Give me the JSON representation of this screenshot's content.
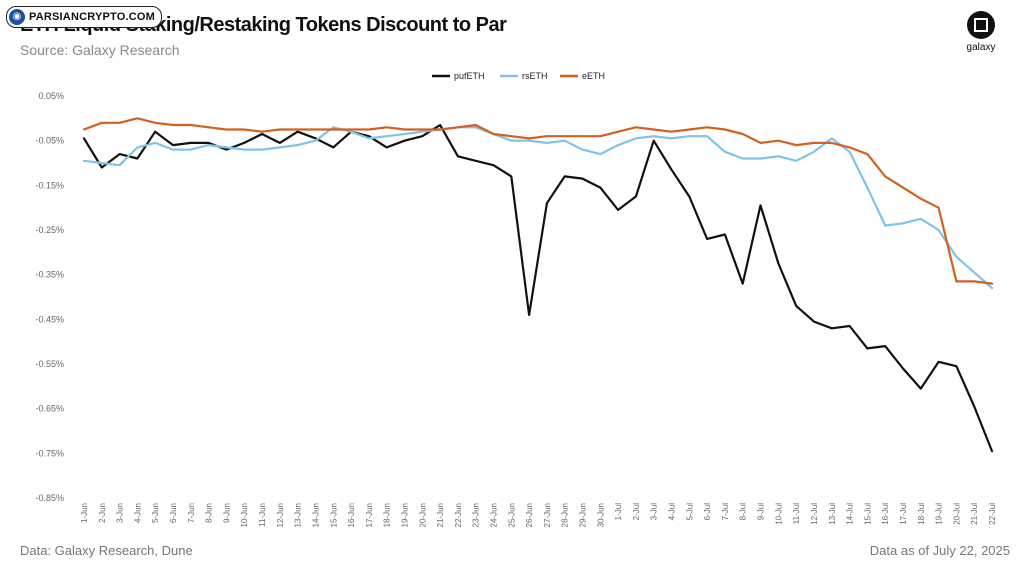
{
  "watermark": {
    "text": "PARSIANCRYPTO.COM",
    "icon": "globe-icon"
  },
  "header": {
    "title": "ETH Liquid Staking/Restaking Tokens Discount to Par",
    "subtitle": "Source: Galaxy Research"
  },
  "logo": {
    "text": "galaxy",
    "icon": "galaxy-logo-icon"
  },
  "footer": {
    "left": "Data: Galaxy Research, Dune",
    "right": "Data as of July 22, 2025"
  },
  "chart_data": {
    "type": "line",
    "title": "ETH Liquid Staking/Restaking Tokens Discount to Par",
    "xlabel": "",
    "ylabel": "",
    "ylim": [
      -0.85,
      0.05
    ],
    "yticks": [
      0.05,
      -0.05,
      -0.15,
      -0.25,
      -0.35,
      -0.45,
      -0.55,
      -0.65,
      -0.75,
      -0.85
    ],
    "ytick_labels": [
      "0.05%",
      "-0.05%",
      "-0.15%",
      "-0.25%",
      "-0.35%",
      "-0.45%",
      "-0.55%",
      "-0.65%",
      "-0.75%",
      "-0.85%"
    ],
    "grid": false,
    "legend_position": "top-center",
    "x": [
      "1-Jun",
      "2-Jun",
      "3-Jun",
      "4-Jun",
      "5-Jun",
      "6-Jun",
      "7-Jun",
      "8-Jun",
      "9-Jun",
      "10-Jun",
      "11-Jun",
      "12-Jun",
      "13-Jun",
      "14-Jun",
      "15-Jun",
      "16-Jun",
      "17-Jun",
      "18-Jun",
      "19-Jun",
      "20-Jun",
      "21-Jun",
      "22-Jun",
      "23-Jun",
      "24-Jun",
      "25-Jun",
      "26-Jun",
      "27-Jun",
      "28-Jun",
      "29-Jun",
      "30-Jun",
      "1-Jul",
      "2-Jul",
      "3-Jul",
      "4-Jul",
      "5-Jul",
      "6-Jul",
      "7-Jul",
      "8-Jul",
      "9-Jul",
      "10-Jul",
      "11-Jul",
      "12-Jul",
      "13-Jul",
      "14-Jul",
      "15-Jul",
      "16-Jul",
      "17-Jul",
      "18-Jul",
      "19-Jul",
      "20-Jul",
      "21-Jul",
      "22-Jul"
    ],
    "series": [
      {
        "name": "pufETH",
        "color": "#111111",
        "values": [
          -0.045,
          -0.11,
          -0.08,
          -0.09,
          -0.03,
          -0.06,
          -0.055,
          -0.055,
          -0.07,
          -0.055,
          -0.035,
          -0.055,
          -0.03,
          -0.045,
          -0.065,
          -0.03,
          -0.04,
          -0.065,
          -0.05,
          -0.04,
          -0.015,
          -0.085,
          -0.095,
          -0.105,
          -0.13,
          -0.44,
          -0.19,
          -0.13,
          -0.135,
          -0.155,
          -0.205,
          -0.175,
          -0.05,
          -0.115,
          -0.175,
          -0.27,
          -0.26,
          -0.37,
          -0.195,
          -0.325,
          -0.42,
          -0.455,
          -0.47,
          -0.465,
          -0.515,
          -0.51,
          -0.56,
          -0.605,
          -0.545,
          -0.555,
          -0.645,
          -0.745
        ]
      },
      {
        "name": "rsETH",
        "color": "#7fc3e8",
        "values": [
          -0.095,
          -0.1,
          -0.105,
          -0.065,
          -0.055,
          -0.07,
          -0.07,
          -0.06,
          -0.065,
          -0.07,
          -0.07,
          -0.065,
          -0.06,
          -0.05,
          -0.02,
          -0.03,
          -0.045,
          -0.04,
          -0.035,
          -0.03,
          -0.025,
          -0.02,
          -0.02,
          -0.035,
          -0.05,
          -0.05,
          -0.055,
          -0.05,
          -0.07,
          -0.08,
          -0.06,
          -0.045,
          -0.04,
          -0.045,
          -0.04,
          -0.04,
          -0.075,
          -0.09,
          -0.09,
          -0.085,
          -0.095,
          -0.075,
          -0.045,
          -0.075,
          -0.155,
          -0.24,
          -0.235,
          -0.225,
          -0.25,
          -0.31,
          -0.345,
          -0.38
        ]
      },
      {
        "name": "eETH",
        "color": "#d2601e",
        "values": [
          -0.025,
          -0.01,
          -0.01,
          0.0,
          -0.01,
          -0.015,
          -0.015,
          -0.02,
          -0.025,
          -0.025,
          -0.03,
          -0.025,
          -0.025,
          -0.025,
          -0.025,
          -0.025,
          -0.025,
          -0.02,
          -0.025,
          -0.025,
          -0.025,
          -0.02,
          -0.015,
          -0.035,
          -0.04,
          -0.045,
          -0.04,
          -0.04,
          -0.04,
          -0.04,
          -0.03,
          -0.02,
          -0.025,
          -0.03,
          -0.025,
          -0.02,
          -0.025,
          -0.035,
          -0.055,
          -0.05,
          -0.06,
          -0.055,
          -0.055,
          -0.065,
          -0.08,
          -0.13,
          -0.155,
          -0.18,
          -0.2,
          -0.365,
          -0.365,
          -0.37
        ]
      }
    ]
  }
}
